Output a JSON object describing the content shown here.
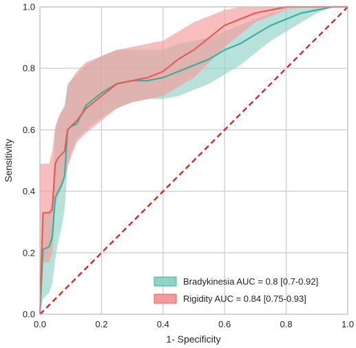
{
  "chart_data": {
    "type": "line",
    "title": "",
    "xlabel": "1- Specificity",
    "ylabel": "Sensitivity",
    "xlim": [
      0,
      1
    ],
    "ylim": [
      0,
      1
    ],
    "xticks": [
      "0.0",
      "0.2",
      "0.4",
      "0.6",
      "0.8",
      "1.0"
    ],
    "yticks": [
      "0.0",
      "0.2",
      "0.4",
      "0.6",
      "0.8",
      "1.0"
    ],
    "grid": true,
    "legend_position": "lower-right",
    "series": [
      {
        "name": "Bradykinesia AUC = 0.8 [0.7-0.92]",
        "color": "#3aafa0",
        "fill_color": "#8fd3c8",
        "x": [
          0,
          0.01,
          0.03,
          0.04,
          0.05,
          0.06,
          0.07,
          0.08,
          0.09,
          0.1,
          0.12,
          0.15,
          0.2,
          0.25,
          0.3,
          0.35,
          0.4,
          0.45,
          0.5,
          0.55,
          0.6,
          0.65,
          0.7,
          0.75,
          0.8,
          0.85,
          0.9,
          0.95,
          1.0
        ],
        "y": [
          0,
          0.21,
          0.22,
          0.25,
          0.38,
          0.4,
          0.42,
          0.45,
          0.6,
          0.61,
          0.62,
          0.68,
          0.72,
          0.75,
          0.76,
          0.76,
          0.77,
          0.79,
          0.81,
          0.83,
          0.86,
          0.88,
          0.91,
          0.94,
          0.96,
          0.98,
          0.99,
          1.0,
          1.0
        ],
        "lower": [
          0,
          0.05,
          0.07,
          0.1,
          0.18,
          0.24,
          0.28,
          0.34,
          0.48,
          0.52,
          0.57,
          0.6,
          0.64,
          0.67,
          0.69,
          0.7,
          0.7,
          0.71,
          0.73,
          0.75,
          0.78,
          0.81,
          0.85,
          0.89,
          0.92,
          0.95,
          0.98,
          1.0,
          1.0
        ],
        "upper": [
          0.13,
          0.33,
          0.33,
          0.38,
          0.6,
          0.64,
          0.66,
          0.68,
          0.75,
          0.76,
          0.78,
          0.81,
          0.84,
          0.86,
          0.86,
          0.86,
          0.86,
          0.88,
          0.89,
          0.9,
          0.92,
          0.94,
          0.96,
          0.98,
          0.99,
          1.0,
          1.0,
          1.0,
          1.0
        ]
      },
      {
        "name": "Rigidity AUC = 0.84 [0.75-0.93]",
        "color": "#e85a5a",
        "fill_color": "#f59a9a",
        "x": [
          0,
          0.01,
          0.03,
          0.04,
          0.05,
          0.06,
          0.07,
          0.08,
          0.09,
          0.1,
          0.12,
          0.15,
          0.2,
          0.25,
          0.3,
          0.35,
          0.4,
          0.45,
          0.5,
          0.55,
          0.6,
          0.65,
          0.7,
          0.75,
          0.8,
          0.85,
          0.9,
          0.95,
          1.0
        ],
        "y": [
          0,
          0.33,
          0.33,
          0.34,
          0.49,
          0.51,
          0.52,
          0.53,
          0.6,
          0.61,
          0.63,
          0.67,
          0.71,
          0.75,
          0.76,
          0.77,
          0.79,
          0.83,
          0.86,
          0.9,
          0.94,
          0.96,
          0.98,
          0.99,
          1.0,
          1.0,
          1.0,
          1.0,
          1.0
        ],
        "lower": [
          0,
          0.17,
          0.17,
          0.2,
          0.35,
          0.39,
          0.41,
          0.44,
          0.48,
          0.51,
          0.56,
          0.59,
          0.63,
          0.67,
          0.69,
          0.7,
          0.71,
          0.74,
          0.77,
          0.82,
          0.87,
          0.91,
          0.95,
          0.97,
          0.99,
          1.0,
          1.0,
          1.0,
          1.0
        ],
        "upper": [
          0.49,
          0.49,
          0.49,
          0.53,
          0.61,
          0.64,
          0.66,
          0.67,
          0.74,
          0.76,
          0.79,
          0.82,
          0.84,
          0.86,
          0.87,
          0.88,
          0.89,
          0.92,
          0.95,
          0.97,
          0.99,
          1.0,
          1.0,
          1.0,
          1.0,
          1.0,
          1.0,
          1.0,
          1.0
        ]
      }
    ],
    "reference_line": {
      "x": [
        0,
        1
      ],
      "y": [
        0,
        1
      ],
      "color": "#dd2222",
      "style": "dashed"
    }
  }
}
